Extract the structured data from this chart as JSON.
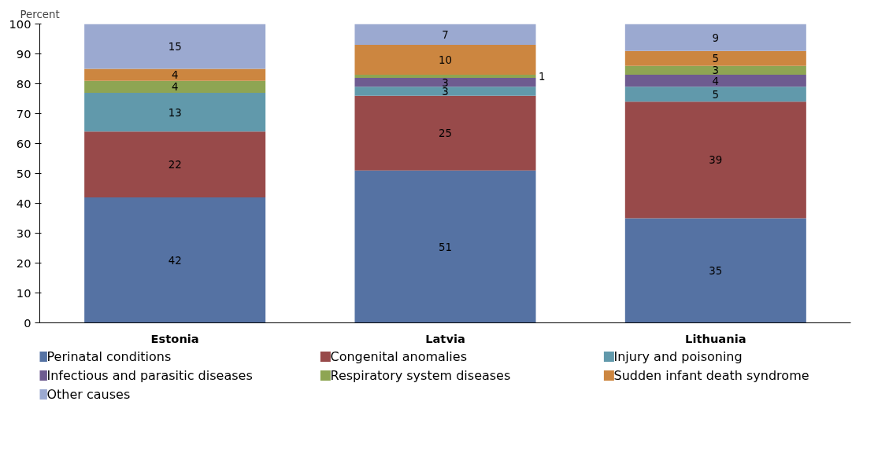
{
  "chart_data": {
    "type": "bar",
    "stacked": true,
    "ylabel": "Percent",
    "categories": [
      "Estonia",
      "Latvia",
      "Lithuania"
    ],
    "series": [
      {
        "name": "Perinatal conditions",
        "color": "#5572a3",
        "values": [
          42,
          51,
          35
        ]
      },
      {
        "name": "Congenital anomalies",
        "color": "#984a4a",
        "values": [
          22,
          25,
          39
        ]
      },
      {
        "name": "Injury and poisoning",
        "color": "#6199ab",
        "values": [
          13,
          3,
          5
        ]
      },
      {
        "name": "Infectious and parasitic diseases",
        "color": "#6e5b90",
        "values": [
          null,
          3,
          4
        ]
      },
      {
        "name": "Respiratory system diseases",
        "color": "#8ea553",
        "values": [
          4,
          1,
          3
        ]
      },
      {
        "name": "Sudden infant death syndrome",
        "color": "#cc8640",
        "values": [
          4,
          10,
          5
        ]
      },
      {
        "name": "Other causes",
        "color": "#9ba9d0",
        "values": [
          15,
          7,
          9
        ]
      }
    ],
    "ylim": [
      0,
      100
    ],
    "yticks": [
      0,
      10,
      20,
      30,
      40,
      50,
      60,
      70,
      80,
      90,
      100
    ],
    "grid": false,
    "legend": "bottom",
    "data_labels": true
  }
}
